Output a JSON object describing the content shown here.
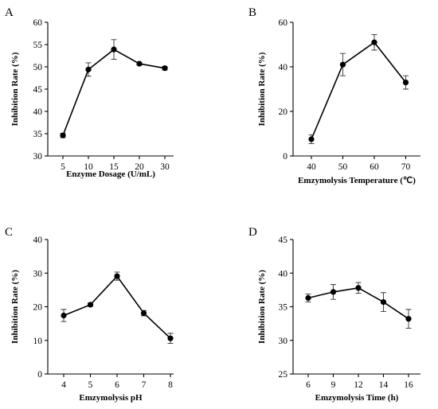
{
  "chart_data": [
    {
      "type": "line",
      "panel": "A",
      "categories": [
        "5",
        "10",
        "15",
        "20",
        "30"
      ],
      "values": [
        34.6,
        49.4,
        53.9,
        50.7,
        49.7
      ],
      "errors": [
        0.5,
        1.5,
        2.2,
        0.3,
        0.4
      ],
      "xlabel": "Enzyme Dosage (U/mL)",
      "ylabel": "Inhibition Rate (%)",
      "ylim": [
        30,
        60
      ],
      "yticks": [
        30,
        35,
        40,
        45,
        50,
        55,
        60
      ]
    },
    {
      "type": "line",
      "panel": "B",
      "categories": [
        "40",
        "50",
        "60",
        "70"
      ],
      "values": [
        7.5,
        41.0,
        51.0,
        33.0
      ],
      "errors": [
        2.0,
        5.0,
        3.5,
        3.0
      ],
      "xlabel": "Emzymolysis Temperature (℃)",
      "ylabel": "Inhibition Rate (%)",
      "ylim": [
        0,
        60
      ],
      "yticks": [
        0,
        20,
        40,
        60
      ]
    },
    {
      "type": "line",
      "panel": "C",
      "categories": [
        "4",
        "5",
        "6",
        "7",
        "8"
      ],
      "values": [
        17.4,
        20.6,
        29.1,
        18.1,
        10.6
      ],
      "errors": [
        1.8,
        0.5,
        1.2,
        0.8,
        1.5
      ],
      "xlabel": "Emzymolysis pH",
      "ylabel": "Inhibition Rate (%)",
      "ylim": [
        0,
        40
      ],
      "yticks": [
        0,
        10,
        20,
        30,
        40
      ]
    },
    {
      "type": "line",
      "panel": "D",
      "categories": [
        "6",
        "9",
        "12",
        "14",
        "16"
      ],
      "values": [
        36.3,
        37.2,
        37.8,
        35.7,
        33.2
      ],
      "errors": [
        0.6,
        1.1,
        0.8,
        1.4,
        1.4
      ],
      "xlabel": "Emzymolysis Time (h)",
      "ylabel": "Inhibition Rate (%)",
      "ylim": [
        25,
        45
      ],
      "yticks": [
        25,
        30,
        35,
        40,
        45
      ]
    }
  ]
}
